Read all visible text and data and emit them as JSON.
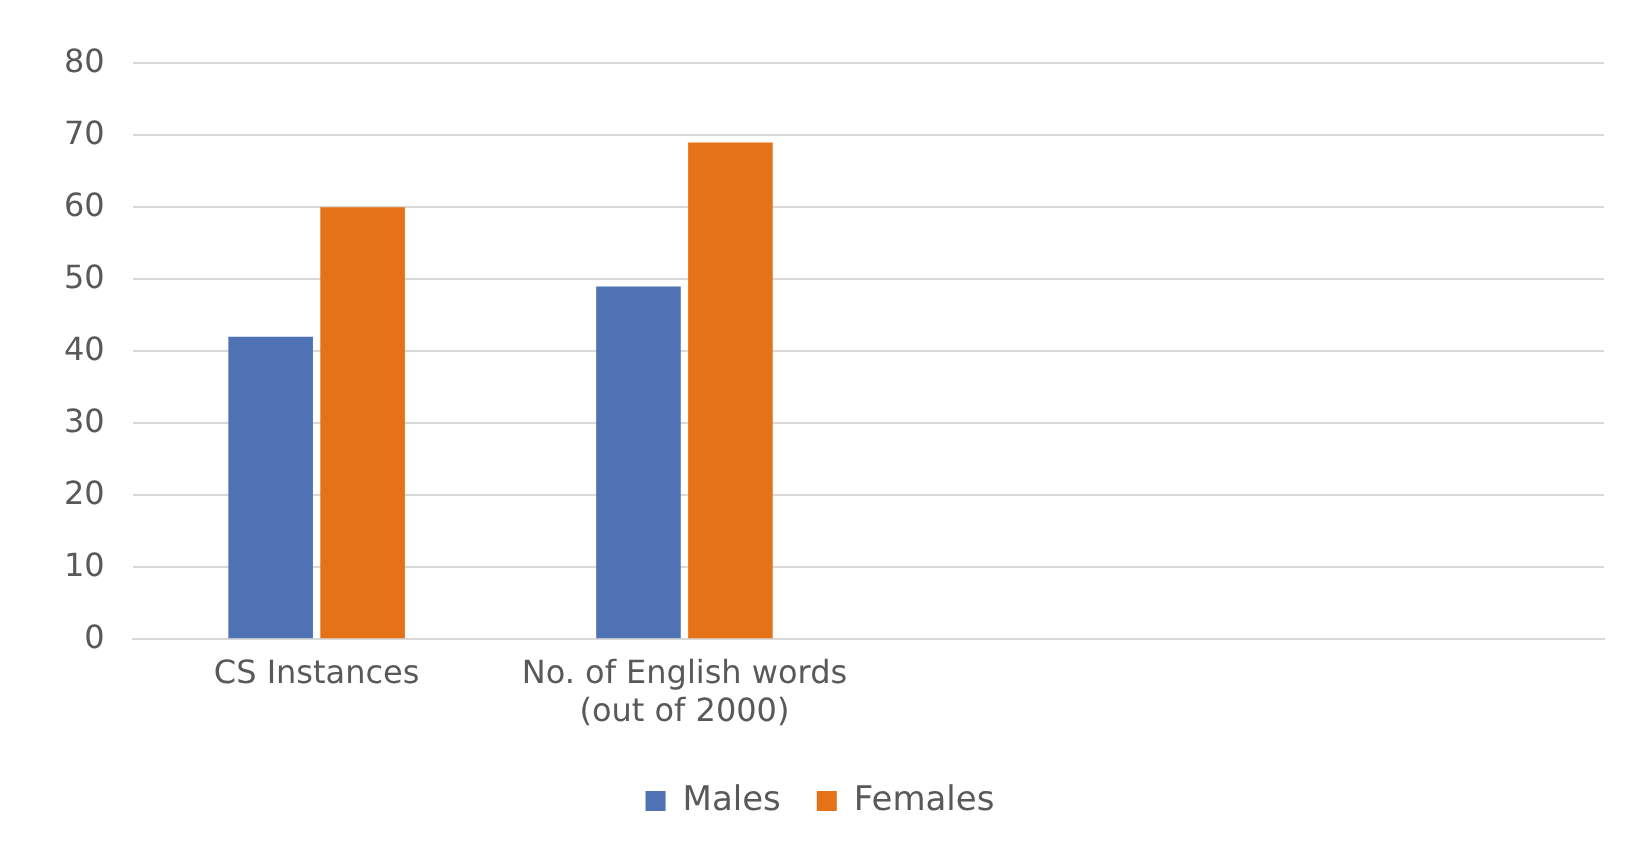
{
  "chart_data": {
    "type": "bar",
    "categories": [
      "CS Instances",
      "No. of English words (out of 2000)",
      null,
      null
    ],
    "series": [
      {
        "name": "Males",
        "color": "#4f72b5",
        "values": [
          42,
          49,
          null,
          null
        ]
      },
      {
        "name": "Females",
        "color": "#e57216",
        "values": [
          60,
          69,
          null,
          null
        ]
      }
    ],
    "ylim": [
      0,
      80
    ],
    "yticks": [
      0,
      10,
      20,
      30,
      40,
      50,
      60,
      70,
      80
    ],
    "grid": "y",
    "legend": "bottom"
  }
}
